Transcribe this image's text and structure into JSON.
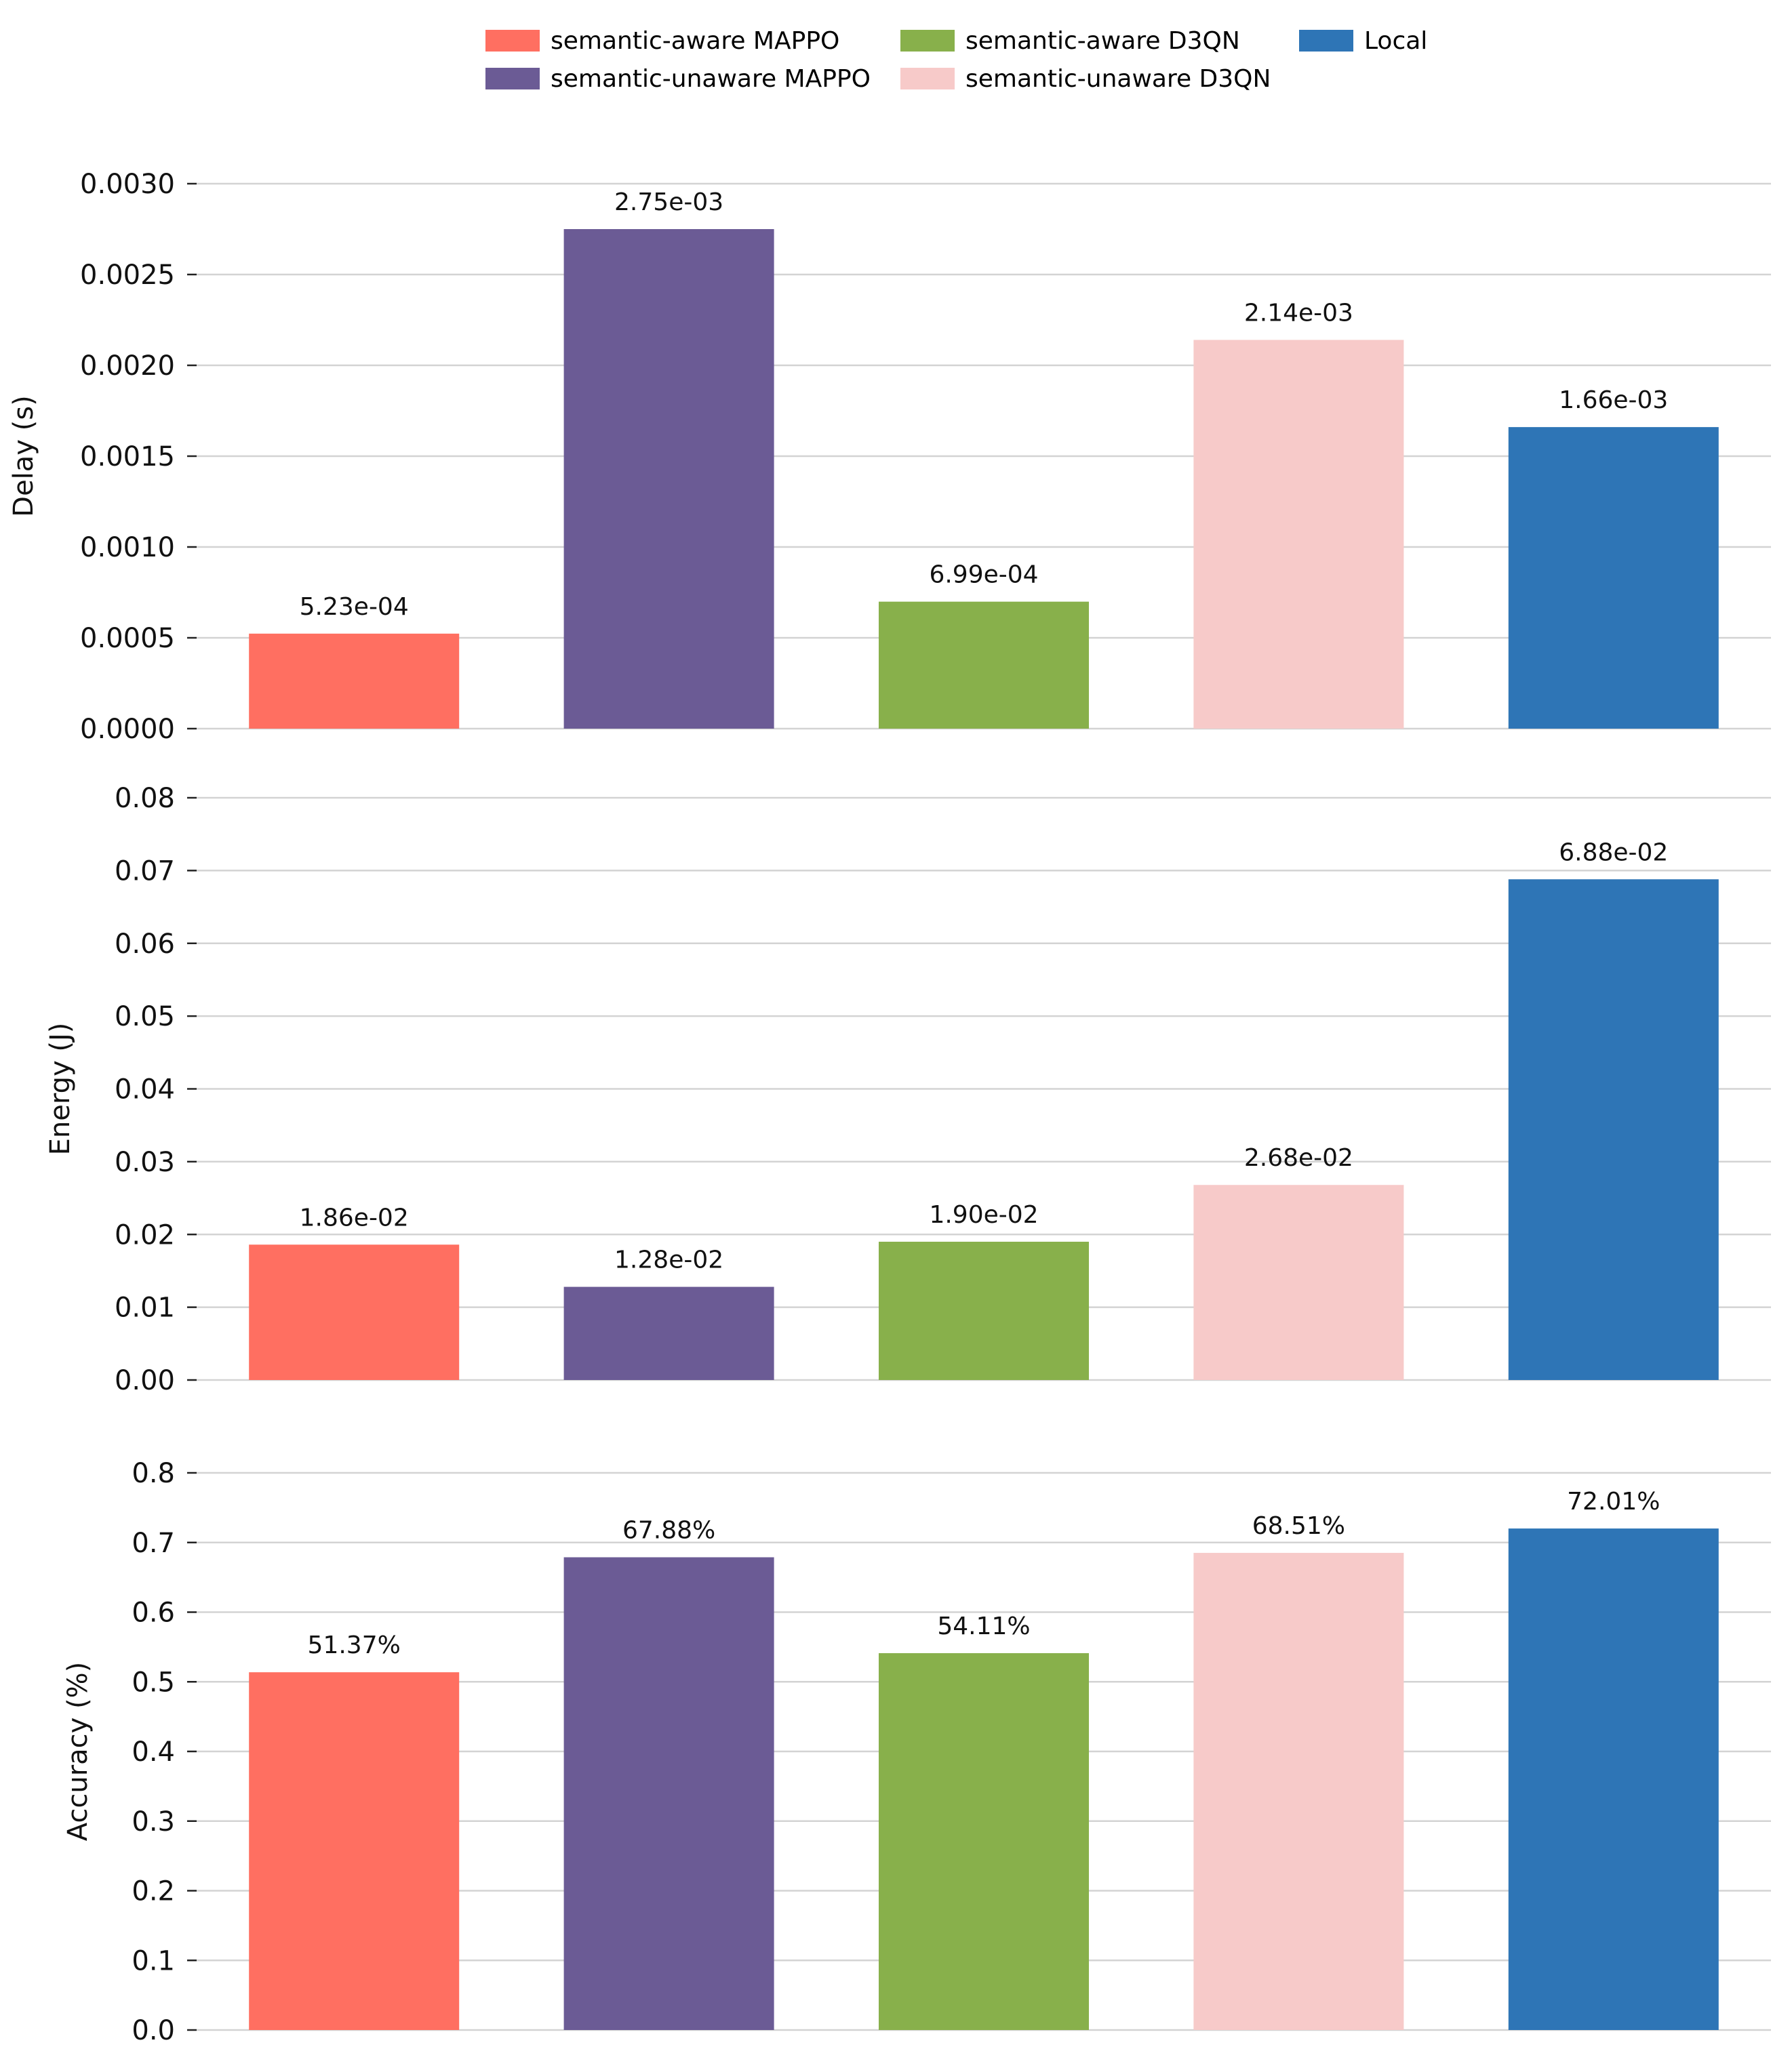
{
  "legend": {
    "items": [
      {
        "label": "semantic-aware MAPPO",
        "color": "#FF6F61"
      },
      {
        "label": "semantic-unaware MAPPO",
        "color": "#6B5B95"
      },
      {
        "label": "semantic-aware D3QN",
        "color": "#88B04B"
      },
      {
        "label": "semantic-unaware D3QN",
        "color": "#F7CAC9"
      },
      {
        "label": "Local",
        "color": "#2E75B6"
      }
    ],
    "placement": "top-center"
  },
  "chart_data": [
    {
      "type": "bar",
      "categories": [
        "semantic-aware MAPPO",
        "semantic-unaware MAPPO",
        "semantic-aware D3QN",
        "semantic-unaware D3QN",
        "Local"
      ],
      "values": [
        0.000523,
        0.00275,
        0.000699,
        0.00214,
        0.00166
      ],
      "data_labels": [
        "5.23e-04",
        "2.75e-03",
        "6.99e-04",
        "2.14e-03",
        "1.66e-03"
      ],
      "colors": [
        "#FF6F61",
        "#6B5B95",
        "#88B04B",
        "#F7CAC9",
        "#2E75B6"
      ],
      "ylabel": "Delay (s)",
      "ylim": [
        0,
        0.003
      ],
      "yticks": [
        "0.0000",
        "0.0005",
        "0.0010",
        "0.0015",
        "0.0020",
        "0.0025",
        "0.0030"
      ],
      "grid": true
    },
    {
      "type": "bar",
      "categories": [
        "semantic-aware MAPPO",
        "semantic-unaware MAPPO",
        "semantic-aware D3QN",
        "semantic-unaware D3QN",
        "Local"
      ],
      "values": [
        0.0186,
        0.0128,
        0.019,
        0.0268,
        0.0688
      ],
      "data_labels": [
        "1.86e-02",
        "1.28e-02",
        "1.90e-02",
        "2.68e-02",
        "6.88e-02"
      ],
      "colors": [
        "#FF6F61",
        "#6B5B95",
        "#88B04B",
        "#F7CAC9",
        "#2E75B6"
      ],
      "ylabel": "Energy (J)",
      "ylim": [
        0,
        0.08
      ],
      "yticks": [
        "0.00",
        "0.01",
        "0.02",
        "0.03",
        "0.04",
        "0.05",
        "0.06",
        "0.07",
        "0.08"
      ],
      "grid": true
    },
    {
      "type": "bar",
      "categories": [
        "semantic-aware MAPPO",
        "semantic-unaware MAPPO",
        "semantic-aware D3QN",
        "semantic-unaware D3QN",
        "Local"
      ],
      "values": [
        0.5137,
        0.6788,
        0.5411,
        0.6851,
        0.7201
      ],
      "data_labels": [
        "51.37%",
        "67.88%",
        "54.11%",
        "68.51%",
        "72.01%"
      ],
      "colors": [
        "#FF6F61",
        "#6B5B95",
        "#88B04B",
        "#F7CAC9",
        "#2E75B6"
      ],
      "ylabel": "Accuracy (%)",
      "ylim": [
        0,
        0.8
      ],
      "yticks": [
        "0.0",
        "0.1",
        "0.2",
        "0.3",
        "0.4",
        "0.5",
        "0.6",
        "0.7",
        "0.8"
      ],
      "grid": true
    }
  ]
}
